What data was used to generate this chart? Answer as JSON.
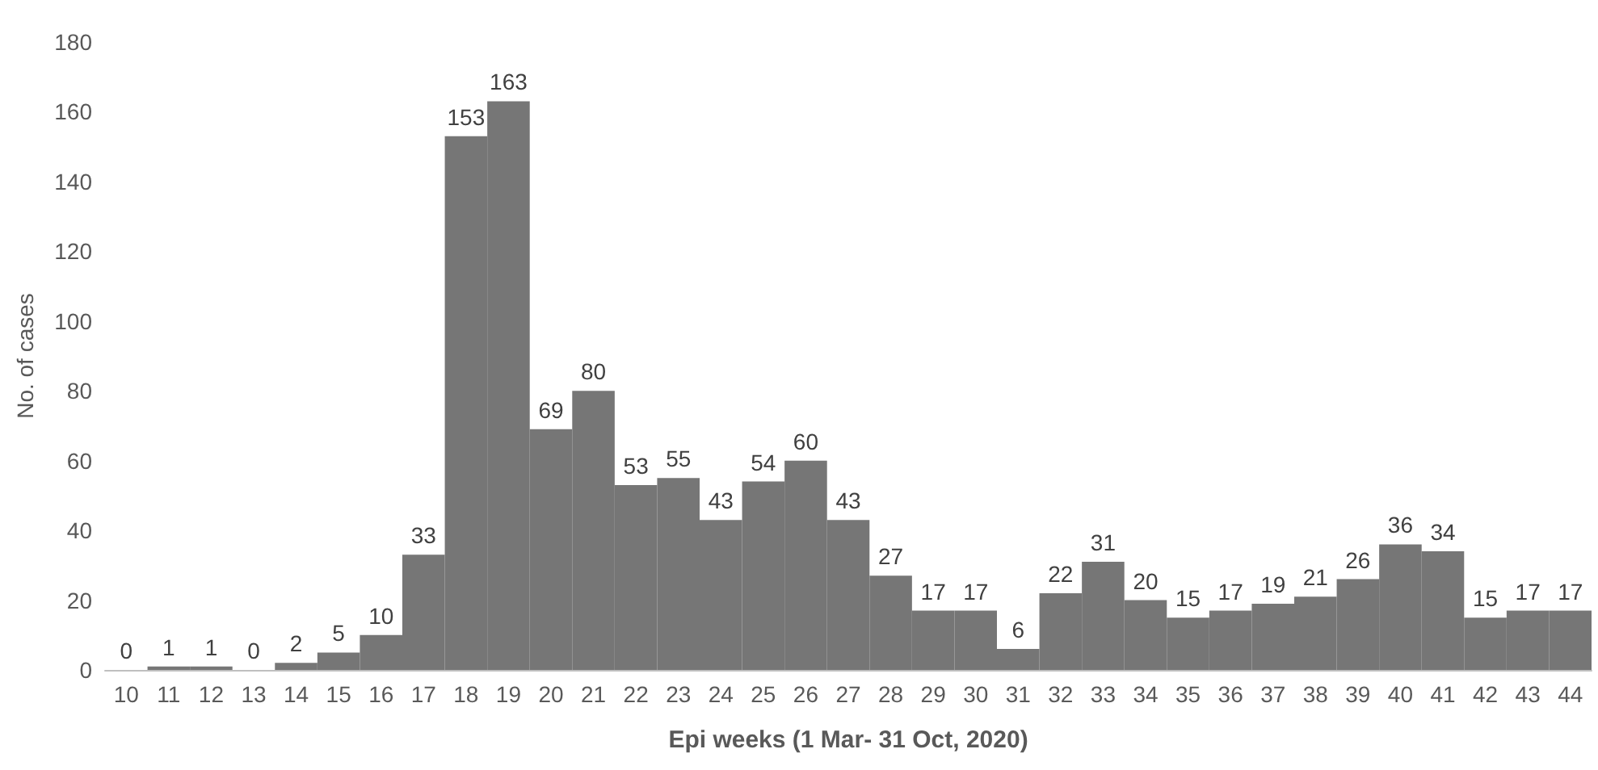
{
  "chart_data": {
    "type": "bar",
    "xlabel": "Epi weeks (1 Mar- 31 Oct, 2020)",
    "ylabel": "No. of cases",
    "categories": [
      "10",
      "11",
      "12",
      "13",
      "14",
      "15",
      "16",
      "17",
      "18",
      "19",
      "20",
      "21",
      "22",
      "23",
      "24",
      "25",
      "26",
      "27",
      "28",
      "29",
      "30",
      "31",
      "32",
      "33",
      "34",
      "35",
      "36",
      "37",
      "38",
      "39",
      "40",
      "41",
      "42",
      "43",
      "44"
    ],
    "values": [
      0,
      1,
      1,
      0,
      2,
      5,
      10,
      33,
      153,
      163,
      69,
      80,
      53,
      55,
      43,
      54,
      60,
      43,
      27,
      17,
      17,
      6,
      22,
      31,
      20,
      15,
      17,
      19,
      21,
      26,
      36,
      34,
      15,
      17,
      17
    ],
    "color": "#767676",
    "ylim": [
      0,
      180
    ],
    "yticks": [
      0,
      20,
      40,
      60,
      80,
      100,
      120,
      140,
      160,
      180
    ],
    "grid": false,
    "data_labels": true
  }
}
